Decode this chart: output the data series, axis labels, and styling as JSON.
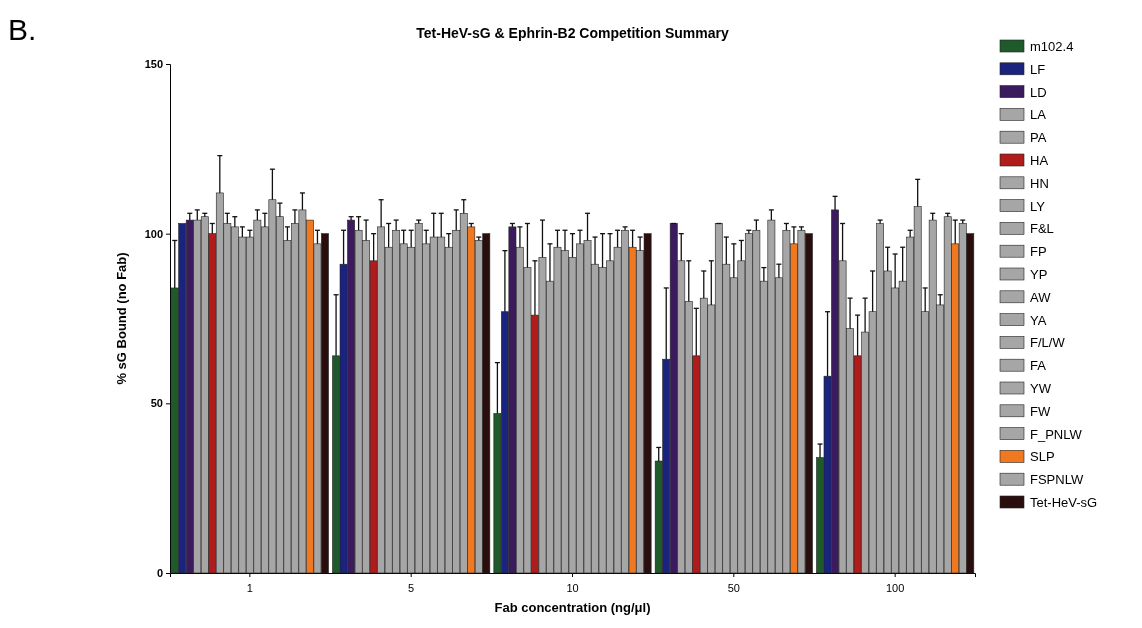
{
  "chart_data": {
    "type": "bar",
    "title": "Tet-HeV-sG & Ephrin-B2 Competition Summary",
    "xlabel": "Fab concentration (ng/μl)",
    "ylabel": "% sG Bound (no Fab)",
    "annotations": [
      "B."
    ],
    "categories": [
      "1",
      "5",
      "10",
      "50",
      "100"
    ],
    "ylim": [
      0,
      150
    ],
    "yticks": [
      0,
      50,
      100,
      150
    ],
    "grid": false,
    "legend": "right",
    "series": [
      {
        "name": "m102.4",
        "color": "#1e5a2a",
        "values": [
          84,
          64,
          47,
          33,
          34
        ],
        "errors": [
          [
            84,
            98
          ],
          [
            64,
            82
          ],
          [
            47,
            62
          ],
          [
            33,
            37
          ],
          [
            34,
            38
          ]
        ]
      },
      {
        "name": "LF",
        "color": "#1a237e",
        "values": [
          103,
          91,
          77,
          63,
          58
        ],
        "errors": [
          null,
          [
            91,
            101
          ],
          [
            77,
            95
          ],
          [
            63,
            84
          ],
          [
            58,
            77
          ]
        ]
      },
      {
        "name": "LD",
        "color": "#3b1b5e",
        "values": [
          104,
          104,
          102,
          103,
          107
        ],
        "errors": [
          [
            104,
            106
          ],
          [
            104,
            105
          ],
          [
            102,
            103
          ],
          [
            103,
            103
          ],
          [
            107,
            111
          ]
        ]
      },
      {
        "name": "LA",
        "color": "#a6a6a6",
        "values": [
          104,
          101,
          96,
          92,
          92
        ],
        "errors": [
          [
            104,
            107
          ],
          [
            101,
            105
          ],
          [
            96,
            102
          ],
          [
            92,
            100
          ],
          [
            92,
            103
          ]
        ]
      },
      {
        "name": "PA",
        "color": "#a6a6a6",
        "values": [
          105,
          98,
          90,
          80,
          72
        ],
        "errors": [
          [
            105,
            106
          ],
          [
            98,
            104
          ],
          [
            90,
            103
          ],
          [
            80,
            92
          ],
          [
            72,
            81
          ]
        ]
      },
      {
        "name": "HA",
        "color": "#b01c1c",
        "values": [
          100,
          92,
          76,
          64,
          64
        ],
        "errors": [
          [
            100,
            103
          ],
          [
            92,
            100
          ],
          [
            76,
            92
          ],
          [
            64,
            78
          ],
          [
            64,
            76
          ]
        ]
      },
      {
        "name": "HN",
        "color": "#a6a6a6",
        "values": [
          112,
          102,
          93,
          81,
          71
        ],
        "errors": [
          [
            112,
            123
          ],
          [
            102,
            110
          ],
          [
            93,
            104
          ],
          [
            81,
            89
          ],
          [
            71,
            81
          ]
        ]
      },
      {
        "name": "LY",
        "color": "#a6a6a6",
        "values": [
          103,
          96,
          86,
          79,
          77
        ],
        "errors": [
          [
            103,
            106
          ],
          [
            96,
            103
          ],
          [
            86,
            97
          ],
          [
            79,
            92
          ],
          [
            77,
            89
          ]
        ]
      },
      {
        "name": "F&L",
        "color": "#a6a6a6",
        "values": [
          102,
          101,
          96,
          103,
          103
        ],
        "errors": [
          [
            102,
            105
          ],
          [
            101,
            104
          ],
          [
            96,
            101
          ],
          [
            103,
            103
          ],
          [
            103,
            104
          ]
        ]
      },
      {
        "name": "FP",
        "color": "#a6a6a6",
        "values": [
          99,
          97,
          95,
          91,
          89
        ],
        "errors": [
          [
            99,
            102
          ],
          [
            97,
            101
          ],
          [
            95,
            101
          ],
          [
            91,
            99
          ],
          [
            89,
            96
          ]
        ]
      },
      {
        "name": "YP",
        "color": "#a6a6a6",
        "values": [
          99,
          96,
          93,
          87,
          84
        ],
        "errors": [
          [
            99,
            101
          ],
          [
            96,
            101
          ],
          [
            93,
            100
          ],
          [
            87,
            97
          ],
          [
            84,
            94
          ]
        ]
      },
      {
        "name": "AW",
        "color": "#a6a6a6",
        "values": [
          104,
          103,
          97,
          92,
          86
        ],
        "errors": [
          [
            104,
            107
          ],
          [
            103,
            104
          ],
          [
            97,
            101
          ],
          [
            92,
            98
          ],
          [
            86,
            96
          ]
        ]
      },
      {
        "name": "YA",
        "color": "#a6a6a6",
        "values": [
          102,
          97,
          98,
          100,
          99
        ],
        "errors": [
          [
            102,
            106
          ],
          [
            97,
            101
          ],
          [
            98,
            106
          ],
          [
            100,
            101
          ],
          [
            99,
            101
          ]
        ]
      },
      {
        "name": "F/L/W",
        "color": "#a6a6a6",
        "values": [
          110,
          99,
          91,
          101,
          108
        ],
        "errors": [
          [
            110,
            119
          ],
          [
            99,
            106
          ],
          [
            91,
            99
          ],
          [
            101,
            104
          ],
          [
            108,
            116
          ]
        ]
      },
      {
        "name": "FA",
        "color": "#a6a6a6",
        "values": [
          105,
          99,
          90,
          86,
          77
        ],
        "errors": [
          [
            105,
            109
          ],
          [
            99,
            106
          ],
          [
            90,
            100
          ],
          [
            86,
            90
          ],
          [
            77,
            84
          ]
        ]
      },
      {
        "name": "YW",
        "color": "#a6a6a6",
        "values": [
          98,
          96,
          92,
          104,
          104
        ],
        "errors": [
          [
            98,
            102
          ],
          [
            96,
            100
          ],
          [
            92,
            100
          ],
          [
            104,
            107
          ],
          [
            104,
            106
          ]
        ]
      },
      {
        "name": "FW",
        "color": "#a6a6a6",
        "values": [
          103,
          101,
          96,
          87,
          79
        ],
        "errors": [
          [
            103,
            107
          ],
          [
            101,
            107
          ],
          [
            96,
            101
          ],
          [
            87,
            91
          ],
          [
            79,
            82
          ]
        ]
      },
      {
        "name": "F_PNLW",
        "color": "#a6a6a6",
        "values": [
          107,
          106,
          101,
          101,
          105
        ],
        "errors": [
          [
            107,
            112
          ],
          [
            106,
            110
          ],
          [
            101,
            102
          ],
          [
            101,
            103
          ],
          [
            105,
            106
          ]
        ]
      },
      {
        "name": "SLP",
        "color": "#f07820",
        "values": [
          104,
          102,
          96,
          97,
          97
        ],
        "errors": [
          null,
          [
            102,
            103
          ],
          [
            96,
            101
          ],
          [
            97,
            102
          ],
          [
            97,
            104
          ]
        ]
      },
      {
        "name": "FSPNLW",
        "color": "#a6a6a6",
        "values": [
          97,
          98,
          95,
          101,
          103
        ],
        "errors": [
          [
            97,
            101
          ],
          [
            98,
            99
          ],
          [
            95,
            99
          ],
          [
            101,
            102
          ],
          [
            103,
            104
          ]
        ]
      },
      {
        "name": "Tet-HeV-sG",
        "color": "#2a0e0e",
        "values": [
          100,
          100,
          100,
          100,
          100
        ]
      }
    ]
  }
}
